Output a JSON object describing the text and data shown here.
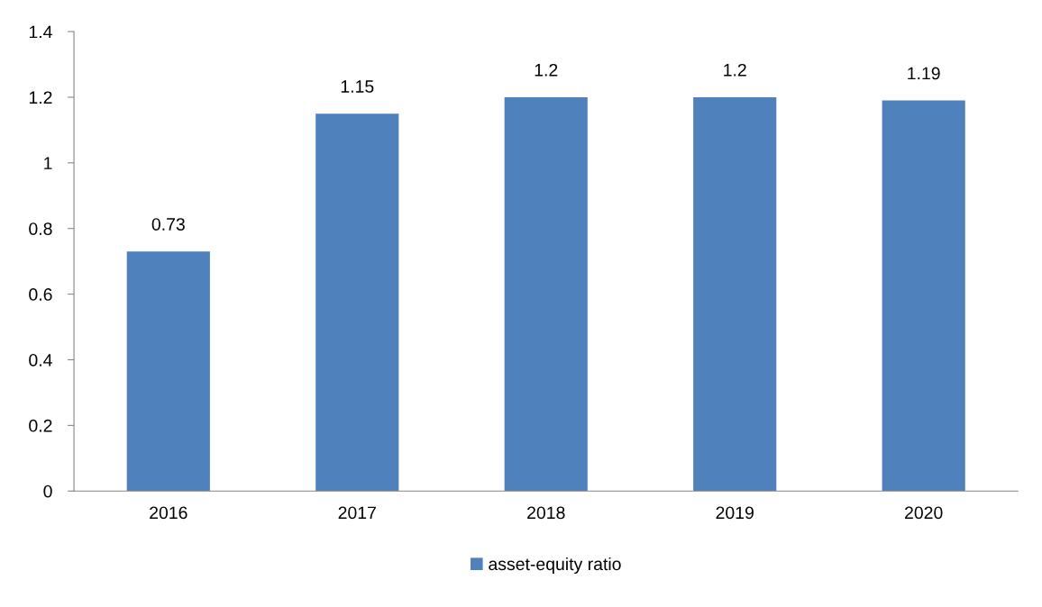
{
  "chart_data": {
    "type": "bar",
    "categories": [
      "2016",
      "2017",
      "2018",
      "2019",
      "2020"
    ],
    "series": [
      {
        "name": "asset-equity ratio",
        "color": "#4f81bd",
        "values": [
          0.73,
          1.15,
          1.2,
          1.2,
          1.19
        ]
      }
    ],
    "ylim": [
      0,
      1.4
    ],
    "yticks": [
      0,
      0.2,
      0.4,
      0.6,
      0.8,
      1,
      1.2,
      1.4
    ],
    "data_labels": true,
    "grid": false,
    "legend": "bottom"
  }
}
